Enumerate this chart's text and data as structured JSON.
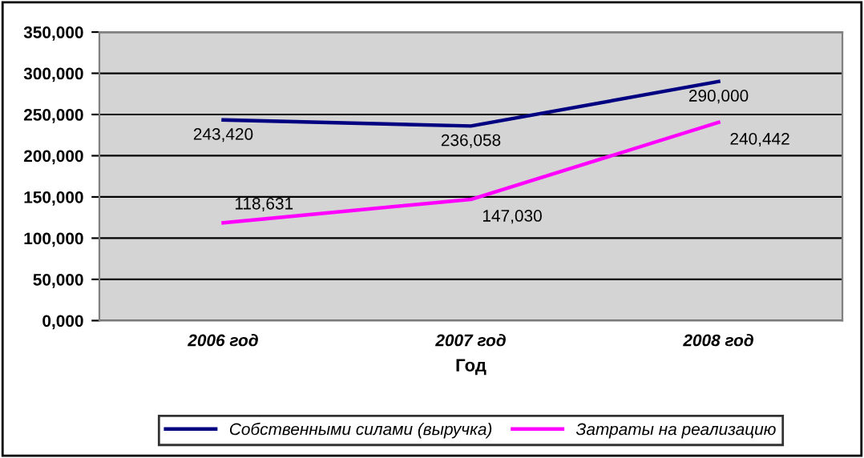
{
  "chart_data": {
    "type": "line",
    "xlabel": "Год",
    "categories": [
      "2006 год",
      "2007 год",
      "2008 год"
    ],
    "series": [
      {
        "name": "Собственными силами (выручка)",
        "color": "#000080",
        "values": [
          243420,
          236058,
          290000
        ],
        "value_labels": [
          "243,420",
          "236,058",
          "290,000"
        ]
      },
      {
        "name": "Затраты на реализацию",
        "color": "#ff00ff",
        "values": [
          118631,
          147030,
          240442
        ],
        "value_labels": [
          "118,631",
          "147,030",
          "240,442"
        ]
      }
    ],
    "ylim": [
      0,
      350000
    ],
    "yticks": [
      {
        "value": 0,
        "label": "0,000"
      },
      {
        "value": 50000,
        "label": "50,000"
      },
      {
        "value": 100000,
        "label": "100,000"
      },
      {
        "value": 150000,
        "label": "150,000"
      },
      {
        "value": 200000,
        "label": "200,000"
      },
      {
        "value": 250000,
        "label": "250,000"
      },
      {
        "value": 300000,
        "label": "300,000"
      },
      {
        "value": 350000,
        "label": "350,000"
      }
    ],
    "grid": "y",
    "legend": "bottom",
    "marker": "none",
    "line_style": "solid"
  }
}
